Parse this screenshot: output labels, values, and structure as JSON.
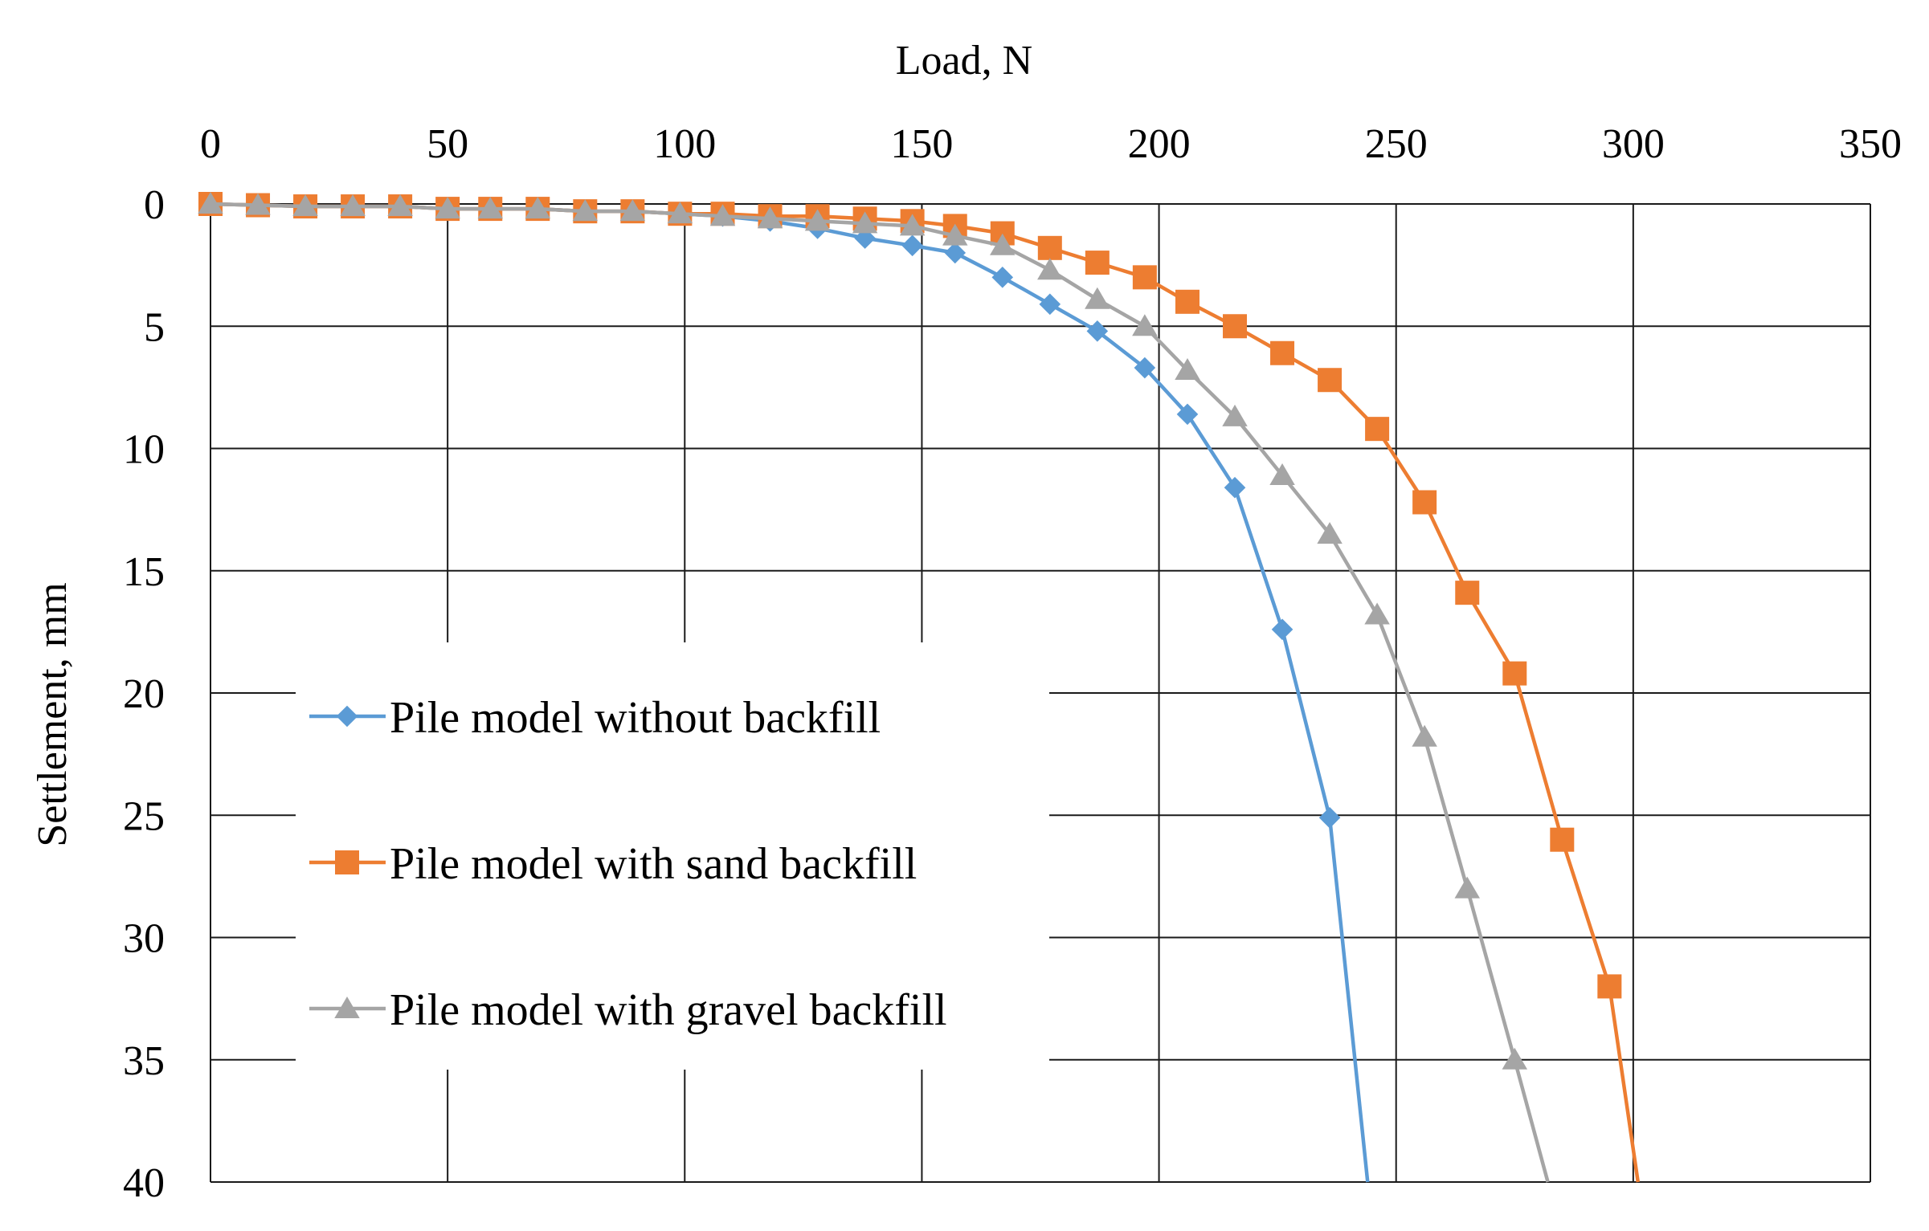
{
  "chart_data": {
    "type": "line",
    "title": "",
    "xlabel": "Load, N",
    "ylabel": "Settlement, mm",
    "xlim": [
      0,
      350
    ],
    "ylim": [
      0,
      40
    ],
    "y_inverted": true,
    "x_axis_position": "top",
    "x_ticks": [
      "0",
      "50",
      "100",
      "150",
      "200",
      "250",
      "300",
      "350"
    ],
    "y_ticks": [
      "0",
      "5",
      "10",
      "15",
      "20",
      "25",
      "30",
      "35",
      "40"
    ],
    "grid": true,
    "legend_position": "left-center",
    "series": [
      {
        "name": "Pile model without backfill",
        "color": "#5b9bd5",
        "marker": "diamond",
        "x": [
          0,
          10,
          20,
          30,
          40,
          50,
          59,
          69,
          79,
          89,
          99,
          108,
          118,
          128,
          138,
          148,
          157,
          167,
          177,
          187,
          197,
          206,
          216,
          226,
          236,
          244
        ],
        "y": [
          0,
          0.05,
          0.1,
          0.1,
          0.1,
          0.2,
          0.2,
          0.2,
          0.3,
          0.3,
          0.4,
          0.5,
          0.7,
          1.0,
          1.4,
          1.7,
          2.0,
          3.0,
          4.1,
          5.2,
          6.7,
          8.6,
          11.6,
          17.4,
          25.1,
          40
        ]
      },
      {
        "name": "Pile model with sand backfill",
        "color": "#ed7d31",
        "marker": "square",
        "x": [
          0,
          10,
          20,
          30,
          40,
          50,
          59,
          69,
          79,
          89,
          99,
          108,
          118,
          128,
          138,
          148,
          157,
          167,
          177,
          187,
          197,
          206,
          216,
          226,
          236,
          246,
          256,
          265,
          275,
          285,
          295,
          301
        ],
        "y": [
          0,
          0.05,
          0.1,
          0.1,
          0.1,
          0.2,
          0.2,
          0.2,
          0.3,
          0.3,
          0.4,
          0.4,
          0.5,
          0.5,
          0.6,
          0.7,
          0.9,
          1.2,
          1.8,
          2.4,
          3.0,
          4.0,
          5.0,
          6.1,
          7.2,
          9.2,
          12.2,
          15.9,
          19.2,
          26.0,
          32.0,
          40
        ]
      },
      {
        "name": "Pile model with gravel backfill",
        "color": "#a5a5a5",
        "marker": "triangle",
        "x": [
          0,
          10,
          20,
          30,
          40,
          50,
          59,
          69,
          79,
          89,
          99,
          108,
          118,
          128,
          138,
          148,
          157,
          167,
          177,
          187,
          197,
          206,
          216,
          226,
          236,
          246,
          256,
          265,
          275,
          282
        ],
        "y": [
          0,
          0.05,
          0.1,
          0.1,
          0.1,
          0.2,
          0.2,
          0.2,
          0.3,
          0.3,
          0.4,
          0.5,
          0.6,
          0.7,
          0.8,
          0.9,
          1.3,
          1.7,
          2.7,
          3.9,
          5.0,
          6.8,
          8.7,
          11.1,
          13.5,
          16.8,
          21.8,
          28.0,
          35.0,
          40
        ]
      }
    ]
  }
}
